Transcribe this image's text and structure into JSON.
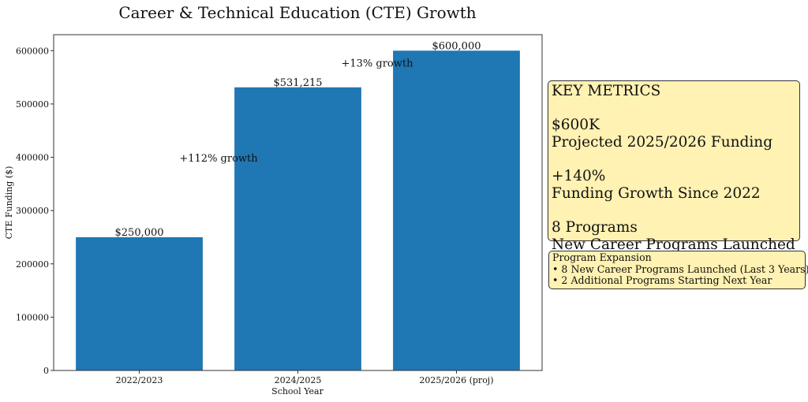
{
  "chart_data": {
    "type": "bar",
    "title": "Career & Technical Education (CTE) Growth",
    "xlabel": "School Year",
    "ylabel": "CTE Funding ($)",
    "categories": [
      "2022/2023",
      "2024/2025",
      "2025/2026 (proj)"
    ],
    "values": [
      250000,
      531215,
      600000
    ],
    "data_labels": [
      "$250,000",
      "$531,215",
      "$600,000"
    ],
    "ylim": [
      0,
      630000
    ],
    "yticks": [
      0,
      100000,
      200000,
      300000,
      400000,
      500000,
      600000
    ],
    "ytick_labels": [
      "0",
      "100000",
      "200000",
      "300000",
      "400000",
      "500000",
      "600000"
    ],
    "bar_color": "#1f77b4",
    "grid": false,
    "annotations": [
      {
        "text": "+112% growth",
        "x": 0.5,
        "y": 392000
      },
      {
        "text": "+13% growth",
        "x": 1.5,
        "y": 570000
      }
    ]
  },
  "key_metrics": {
    "lines": [
      "KEY METRICS",
      "",
      "$600K",
      "Projected 2025/2026 Funding",
      "",
      "+140%",
      "Funding Growth Since 2022",
      "",
      "8 Programs",
      "New Career Programs Launched"
    ],
    "background": "#fff2b3"
  },
  "program_expansion": {
    "lines": [
      "Program Expansion",
      "• 8 New Career Programs Launched (Last 3 Years)",
      "• 2 Additional Programs Starting Next Year"
    ]
  }
}
